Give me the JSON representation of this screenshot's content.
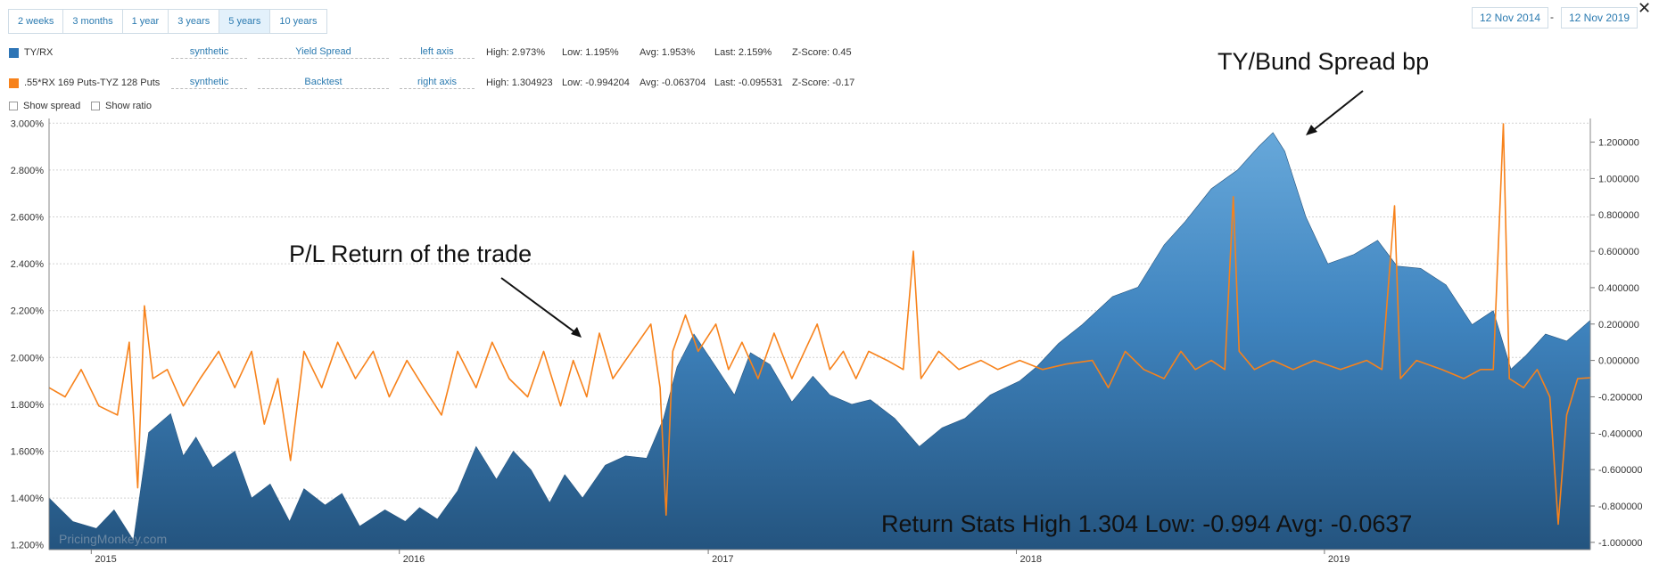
{
  "range_buttons": [
    {
      "label": "2 weeks",
      "active": false
    },
    {
      "label": "3 months",
      "active": false
    },
    {
      "label": "1 year",
      "active": false
    },
    {
      "label": "3 years",
      "active": false
    },
    {
      "label": "5 years",
      "active": true
    },
    {
      "label": "10 years",
      "active": false
    }
  ],
  "date_range": {
    "start": "12 Nov 2014",
    "separator": "-",
    "end": "12 Nov 2019"
  },
  "close_label": "✕",
  "series_rows": [
    {
      "name": "TY/RX",
      "color": "#2e75b6",
      "type": "synthetic",
      "mode": "Yield Spread",
      "axis": "left axis",
      "high": "High: 2.973%",
      "low": "Low: 1.195%",
      "avg": "Avg: 1.953%",
      "last": "Last: 2.159%",
      "z": "Z-Score: 0.45"
    },
    {
      "name": ".55*RX 169 Puts-TYZ 128 Puts",
      "color": "#f7821b",
      "type": "synthetic",
      "mode": "Backtest",
      "axis": "right axis",
      "high": "High: 1.304923",
      "low": "Low: -0.994204",
      "avg": "Avg: -0.063704",
      "last": "Last: -0.095531",
      "z": "Z-Score: -0.17"
    }
  ],
  "options": {
    "show_spread": "Show spread",
    "show_ratio": "Show ratio"
  },
  "annotations": {
    "spread": "TY/Bund Spread bp",
    "pl": "P/L Return of the trade",
    "stats": "Return Stats High 1.304 Low: -0.994 Avg: -0.0637"
  },
  "watermark": "PricingMonkey.com",
  "chart_data": {
    "type": "area",
    "x_ticks": [
      "2015",
      "2016",
      "2017",
      "2018",
      "2019"
    ],
    "x_range": [
      "2014-11-12",
      "2019-11-12"
    ],
    "left_axis": {
      "ticks": [
        "1.200%",
        "1.400%",
        "1.600%",
        "1.800%",
        "2.000%",
        "2.200%",
        "2.400%",
        "2.600%",
        "2.800%",
        "3.000%"
      ],
      "ylim": [
        1.18,
        3.02
      ]
    },
    "right_axis": {
      "ticks": [
        "-1.000000",
        "-0.800000",
        "-0.600000",
        "-0.400000",
        "-0.200000",
        "0.000000",
        "0.200000",
        "0.400000",
        "0.600000",
        "0.800000",
        "1.000000",
        "1.200000"
      ],
      "ylim": [
        -1.04,
        1.33
      ]
    },
    "grid": true,
    "series": [
      {
        "name": "TY/RX",
        "axis": "left",
        "kind": "area",
        "color": "#2e75b6",
        "points": [
          [
            "2014-11-12",
            1.4
          ],
          [
            "2014-12-10",
            1.3
          ],
          [
            "2015-01-07",
            1.27
          ],
          [
            "2015-01-28",
            1.35
          ],
          [
            "2015-02-20",
            1.22
          ],
          [
            "2015-03-10",
            1.68
          ],
          [
            "2015-04-05",
            1.76
          ],
          [
            "2015-04-20",
            1.58
          ],
          [
            "2015-05-05",
            1.66
          ],
          [
            "2015-05-25",
            1.53
          ],
          [
            "2015-06-20",
            1.6
          ],
          [
            "2015-07-10",
            1.4
          ],
          [
            "2015-08-01",
            1.46
          ],
          [
            "2015-08-24",
            1.3
          ],
          [
            "2015-09-10",
            1.44
          ],
          [
            "2015-10-05",
            1.37
          ],
          [
            "2015-10-25",
            1.42
          ],
          [
            "2015-11-15",
            1.28
          ],
          [
            "2015-12-15",
            1.35
          ],
          [
            "2016-01-08",
            1.3
          ],
          [
            "2016-01-25",
            1.36
          ],
          [
            "2016-02-15",
            1.31
          ],
          [
            "2016-03-10",
            1.43
          ],
          [
            "2016-04-01",
            1.62
          ],
          [
            "2016-04-25",
            1.48
          ],
          [
            "2016-05-15",
            1.6
          ],
          [
            "2016-06-05",
            1.52
          ],
          [
            "2016-06-27",
            1.38
          ],
          [
            "2016-07-15",
            1.5
          ],
          [
            "2016-08-05",
            1.4
          ],
          [
            "2016-09-01",
            1.54
          ],
          [
            "2016-09-25",
            1.58
          ],
          [
            "2016-10-20",
            1.57
          ],
          [
            "2016-11-09",
            1.74
          ],
          [
            "2016-11-25",
            1.96
          ],
          [
            "2016-12-15",
            2.1
          ],
          [
            "2017-01-10",
            1.96
          ],
          [
            "2017-02-01",
            1.84
          ],
          [
            "2017-02-20",
            2.02
          ],
          [
            "2017-03-15",
            1.97
          ],
          [
            "2017-04-10",
            1.81
          ],
          [
            "2017-05-05",
            1.92
          ],
          [
            "2017-05-25",
            1.84
          ],
          [
            "2017-06-20",
            1.8
          ],
          [
            "2017-07-12",
            1.82
          ],
          [
            "2017-08-10",
            1.74
          ],
          [
            "2017-09-08",
            1.62
          ],
          [
            "2017-10-05",
            1.7
          ],
          [
            "2017-11-01",
            1.74
          ],
          [
            "2017-12-01",
            1.84
          ],
          [
            "2018-01-05",
            1.9
          ],
          [
            "2018-01-25",
            1.96
          ],
          [
            "2018-02-20",
            2.06
          ],
          [
            "2018-03-20",
            2.14
          ],
          [
            "2018-04-25",
            2.26
          ],
          [
            "2018-05-25",
            2.3
          ],
          [
            "2018-06-25",
            2.48
          ],
          [
            "2018-07-20",
            2.58
          ],
          [
            "2018-08-20",
            2.72
          ],
          [
            "2018-09-20",
            2.8
          ],
          [
            "2018-10-15",
            2.9
          ],
          [
            "2018-11-01",
            2.96
          ],
          [
            "2018-11-15",
            2.88
          ],
          [
            "2018-12-10",
            2.6
          ],
          [
            "2019-01-05",
            2.4
          ],
          [
            "2019-02-05",
            2.44
          ],
          [
            "2019-03-05",
            2.5
          ],
          [
            "2019-03-28",
            2.39
          ],
          [
            "2019-04-25",
            2.38
          ],
          [
            "2019-05-25",
            2.31
          ],
          [
            "2019-06-25",
            2.14
          ],
          [
            "2019-07-20",
            2.2
          ],
          [
            "2019-08-10",
            1.95
          ],
          [
            "2019-08-28",
            2.01
          ],
          [
            "2019-09-20",
            2.1
          ],
          [
            "2019-10-15",
            2.07
          ],
          [
            "2019-11-12",
            2.159
          ]
        ]
      },
      {
        "name": ".55*RX 169 Puts-TYZ 128 Puts",
        "axis": "right",
        "kind": "line",
        "color": "#f7821b",
        "points": [
          [
            "2014-11-12",
            -0.15
          ],
          [
            "2014-12-01",
            -0.2
          ],
          [
            "2014-12-20",
            -0.05
          ],
          [
            "2015-01-10",
            -0.25
          ],
          [
            "2015-02-01",
            -0.3
          ],
          [
            "2015-02-15",
            0.1
          ],
          [
            "2015-02-25",
            -0.7
          ],
          [
            "2015-03-05",
            0.3
          ],
          [
            "2015-03-15",
            -0.1
          ],
          [
            "2015-04-01",
            -0.05
          ],
          [
            "2015-04-20",
            -0.25
          ],
          [
            "2015-05-10",
            -0.1
          ],
          [
            "2015-06-01",
            0.05
          ],
          [
            "2015-06-20",
            -0.15
          ],
          [
            "2015-07-10",
            0.05
          ],
          [
            "2015-07-25",
            -0.35
          ],
          [
            "2015-08-10",
            -0.1
          ],
          [
            "2015-08-25",
            -0.55
          ],
          [
            "2015-09-10",
            0.05
          ],
          [
            "2015-10-01",
            -0.15
          ],
          [
            "2015-10-20",
            0.1
          ],
          [
            "2015-11-10",
            -0.1
          ],
          [
            "2015-12-01",
            0.05
          ],
          [
            "2015-12-20",
            -0.2
          ],
          [
            "2016-01-10",
            0.0
          ],
          [
            "2016-01-30",
            -0.15
          ],
          [
            "2016-02-20",
            -0.3
          ],
          [
            "2016-03-10",
            0.05
          ],
          [
            "2016-04-01",
            -0.15
          ],
          [
            "2016-04-20",
            0.1
          ],
          [
            "2016-05-10",
            -0.1
          ],
          [
            "2016-06-01",
            -0.2
          ],
          [
            "2016-06-20",
            0.05
          ],
          [
            "2016-07-10",
            -0.25
          ],
          [
            "2016-07-25",
            0.0
          ],
          [
            "2016-08-10",
            -0.2
          ],
          [
            "2016-08-25",
            0.15
          ],
          [
            "2016-09-10",
            -0.1
          ],
          [
            "2016-09-25",
            0.0
          ],
          [
            "2016-10-10",
            0.1
          ],
          [
            "2016-10-25",
            0.2
          ],
          [
            "2016-11-05",
            -0.15
          ],
          [
            "2016-11-12",
            -0.85
          ],
          [
            "2016-11-20",
            0.05
          ],
          [
            "2016-12-05",
            0.25
          ],
          [
            "2016-12-20",
            0.05
          ],
          [
            "2017-01-10",
            0.2
          ],
          [
            "2017-01-25",
            -0.05
          ],
          [
            "2017-02-10",
            0.1
          ],
          [
            "2017-03-01",
            -0.1
          ],
          [
            "2017-03-20",
            0.15
          ],
          [
            "2017-04-10",
            -0.1
          ],
          [
            "2017-04-25",
            0.05
          ],
          [
            "2017-05-10",
            0.2
          ],
          [
            "2017-05-25",
            -0.05
          ],
          [
            "2017-06-10",
            0.05
          ],
          [
            "2017-06-25",
            -0.1
          ],
          [
            "2017-07-10",
            0.05
          ],
          [
            "2017-08-01",
            0.0
          ],
          [
            "2017-08-20",
            -0.05
          ],
          [
            "2017-09-01",
            0.6
          ],
          [
            "2017-09-10",
            -0.1
          ],
          [
            "2017-10-01",
            0.05
          ],
          [
            "2017-10-25",
            -0.05
          ],
          [
            "2017-11-20",
            0.0
          ],
          [
            "2017-12-10",
            -0.05
          ],
          [
            "2018-01-05",
            0.0
          ],
          [
            "2018-02-01",
            -0.05
          ],
          [
            "2018-03-01",
            -0.02
          ],
          [
            "2018-04-01",
            0.0
          ],
          [
            "2018-04-20",
            -0.15
          ],
          [
            "2018-05-10",
            0.05
          ],
          [
            "2018-06-01",
            -0.05
          ],
          [
            "2018-06-25",
            -0.1
          ],
          [
            "2018-07-15",
            0.05
          ],
          [
            "2018-08-01",
            -0.05
          ],
          [
            "2018-08-20",
            0.0
          ],
          [
            "2018-09-05",
            -0.05
          ],
          [
            "2018-09-15",
            0.9
          ],
          [
            "2018-09-22",
            0.05
          ],
          [
            "2018-10-10",
            -0.05
          ],
          [
            "2018-11-01",
            0.0
          ],
          [
            "2018-11-25",
            -0.05
          ],
          [
            "2018-12-20",
            0.0
          ],
          [
            "2019-01-20",
            -0.05
          ],
          [
            "2019-02-20",
            0.0
          ],
          [
            "2019-03-10",
            -0.05
          ],
          [
            "2019-03-25",
            0.85
          ],
          [
            "2019-04-01",
            -0.1
          ],
          [
            "2019-04-20",
            0.0
          ],
          [
            "2019-05-20",
            -0.05
          ],
          [
            "2019-06-15",
            -0.1
          ],
          [
            "2019-07-05",
            -0.05
          ],
          [
            "2019-07-20",
            -0.05
          ],
          [
            "2019-08-01",
            1.3
          ],
          [
            "2019-08-08",
            -0.1
          ],
          [
            "2019-08-25",
            -0.15
          ],
          [
            "2019-09-10",
            -0.05
          ],
          [
            "2019-09-25",
            -0.2
          ],
          [
            "2019-10-05",
            -0.9
          ],
          [
            "2019-10-15",
            -0.3
          ],
          [
            "2019-10-28",
            -0.1
          ],
          [
            "2019-11-12",
            -0.0955
          ]
        ]
      }
    ]
  }
}
